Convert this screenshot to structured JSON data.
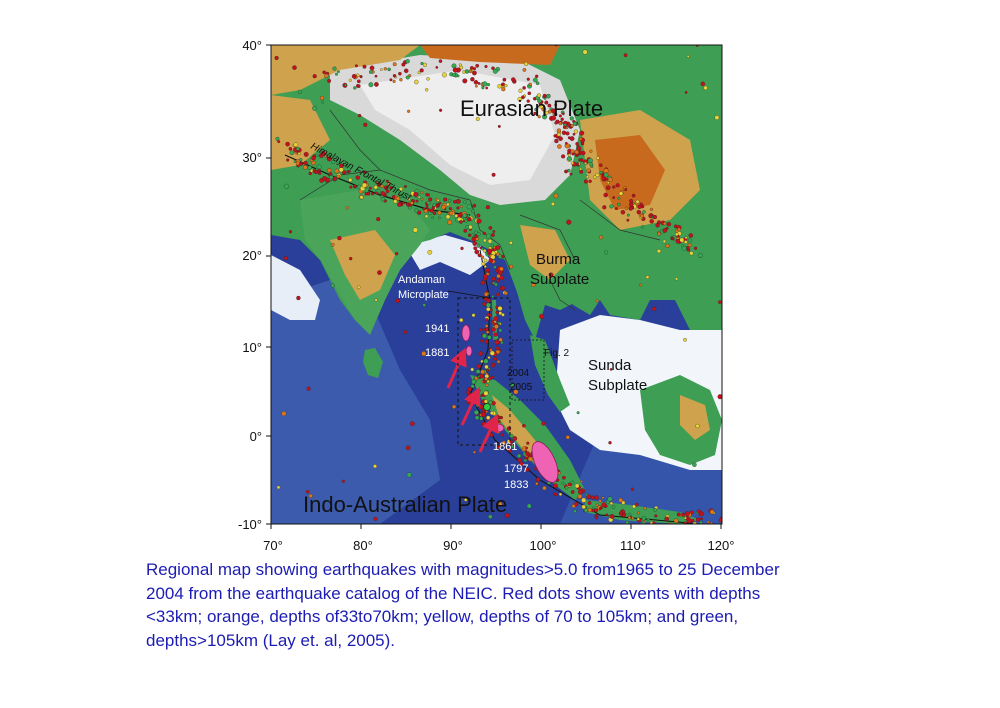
{
  "map": {
    "lat_ticks": [
      "40°",
      "30°",
      "20°",
      "10°",
      "0°",
      "-10°"
    ],
    "lon_ticks": [
      "70°",
      "80°",
      "90°",
      "100°",
      "110°",
      "120°"
    ],
    "labels": {
      "eurasian": "Eurasian Plate",
      "himalayan": "Himalayan Frontal Thrust",
      "burma_1": "Burma",
      "burma_2": "Subplate",
      "andaman_1": "Andaman",
      "andaman_2": "Microplate",
      "sunda_1": "Sunda",
      "sunda_2": "Subplate",
      "indo": "Indo-Australian Plate",
      "fig2": "Fig. 2",
      "y2004": "2004",
      "y2005": "2005",
      "y1941": "1941",
      "y1881": "1881",
      "y1861": "1861",
      "y1797": "1797",
      "y1833": "1833"
    },
    "colors": {
      "ocean_deep": "#2a3f9a",
      "ocean_mid": "#4f79c5",
      "shelf": "#f2f6fb",
      "lowland": "#3e9e54",
      "upland": "#cfa24d",
      "mountain": "#c86a1e",
      "quake_red": "#c0131d",
      "rupture_pink": "#ee63b3",
      "arrow": "#e0254a"
    }
  },
  "caption": {
    "line1": "Regional map showing earthquakes with magnitudes>5.0 from1965 to 25 December",
    "line2": "2004 from the earthquake catalog of the NEIC. Red dots show events with depths",
    "line3": "<33km; orange, depths of33to70km; yellow, depths of 70 to 105km; and green,",
    "line4": "depths>105km (Lay et. al, 2005)."
  }
}
